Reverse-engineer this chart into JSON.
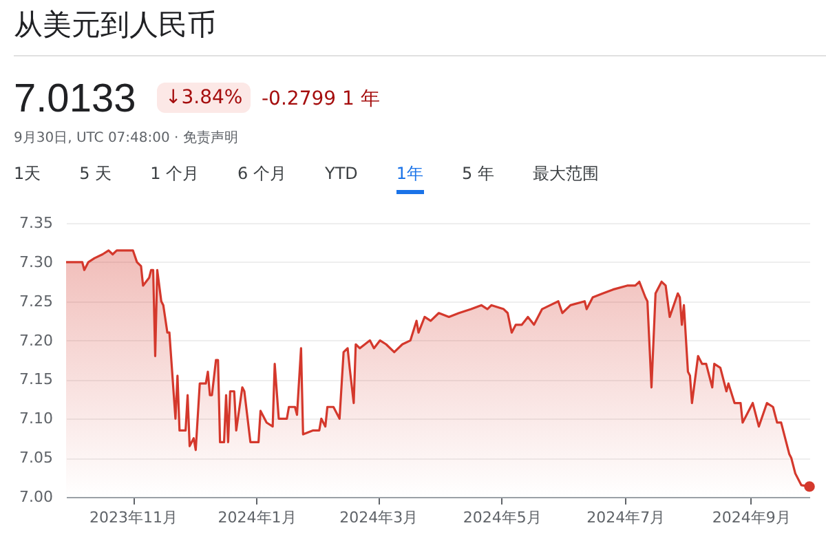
{
  "chart_data": {
    "type": "area",
    "title": "从美元到人民币",
    "annotations": [
      "7.0133",
      "↓3.84%",
      "-0.2799 1 年",
      "9月30日, UTC 07:48:00 · 免责声明",
      "1天",
      "5 天",
      "1 个月",
      "6 个月",
      "YTD",
      "1年",
      "5 年",
      "最大范围"
    ],
    "x": [
      "2023-09-29",
      "2023-10-07",
      "2023-10-08",
      "2023-10-10",
      "2023-10-13",
      "2023-10-17",
      "2023-10-20",
      "2023-10-22",
      "2023-10-24",
      "2023-10-30",
      "2023-11-01",
      "2023-11-03",
      "2023-11-05",
      "2023-11-06",
      "2023-11-09",
      "2023-11-10",
      "2023-11-11",
      "2023-11-12",
      "2023-11-13",
      "2023-11-15",
      "2023-11-16",
      "2023-11-18",
      "2023-11-19",
      "2023-11-22",
      "2023-11-23",
      "2023-11-24",
      "2023-11-27",
      "2023-11-28",
      "2023-11-29",
      "2023-12-01",
      "2023-12-02",
      "2023-12-04",
      "2023-12-07",
      "2023-12-08",
      "2023-12-09",
      "2023-12-10",
      "2023-12-12",
      "2023-12-13",
      "2023-12-14",
      "2023-12-16",
      "2023-12-17",
      "2023-12-18",
      "2023-12-19",
      "2023-12-21",
      "2023-12-22",
      "2023-12-25",
      "2023-12-26",
      "2023-12-29",
      "2023-12-31",
      "2024-01-02",
      "2024-01-03",
      "2024-01-06",
      "2024-01-09",
      "2024-01-10",
      "2024-01-12",
      "2024-01-16",
      "2024-01-17",
      "2024-01-20",
      "2024-01-21",
      "2024-01-23",
      "2024-01-24",
      "2024-01-29",
      "2024-02-01",
      "2024-02-02",
      "2024-02-04",
      "2024-02-05",
      "2024-02-08",
      "2024-02-11",
      "2024-02-13",
      "2024-02-15",
      "2024-02-16",
      "2024-02-18",
      "2024-02-19",
      "2024-02-21",
      "2024-02-26",
      "2024-02-28",
      "2024-03-02",
      "2024-03-05",
      "2024-03-09",
      "2024-03-13",
      "2024-03-17",
      "2024-03-20",
      "2024-03-21",
      "2024-03-24",
      "2024-03-27",
      "2024-03-31",
      "2024-04-05",
      "2024-04-10",
      "2024-04-16",
      "2024-04-21",
      "2024-04-24",
      "2024-04-26",
      "2024-05-02",
      "2024-05-04",
      "2024-05-06",
      "2024-05-08",
      "2024-05-11",
      "2024-05-14",
      "2024-05-17",
      "2024-05-21",
      "2024-05-25",
      "2024-05-29",
      "2024-05-31",
      "2024-06-04",
      "2024-06-11",
      "2024-06-12",
      "2024-06-15",
      "2024-06-20",
      "2024-06-25",
      "2024-07-02",
      "2024-07-06",
      "2024-07-08",
      "2024-07-11",
      "2024-07-12",
      "2024-07-14",
      "2024-07-16",
      "2024-07-19",
      "2024-07-21",
      "2024-07-23",
      "2024-07-27",
      "2024-07-28",
      "2024-07-29",
      "2024-07-30",
      "2024-08-01",
      "2024-08-02",
      "2024-08-03",
      "2024-08-06",
      "2024-08-08",
      "2024-08-10",
      "2024-08-13",
      "2024-08-14",
      "2024-08-17",
      "2024-08-20",
      "2024-08-21",
      "2024-08-24",
      "2024-08-27",
      "2024-08-28",
      "2024-09-02",
      "2024-09-05",
      "2024-09-09",
      "2024-09-12",
      "2024-09-14",
      "2024-09-16",
      "2024-09-20",
      "2024-09-21",
      "2024-09-23",
      "2024-09-26",
      "2024-09-30"
    ],
    "series": [
      {
        "color": "#d4382c",
        "values": [
          7.3,
          7.3,
          7.29,
          7.3,
          7.305,
          7.31,
          7.315,
          7.31,
          7.315,
          7.315,
          7.315,
          7.3,
          7.295,
          7.27,
          7.28,
          7.29,
          7.29,
          7.18,
          7.29,
          7.25,
          7.245,
          7.21,
          7.21,
          7.1,
          7.155,
          7.085,
          7.085,
          7.13,
          7.065,
          7.075,
          7.06,
          7.145,
          7.145,
          7.16,
          7.13,
          7.13,
          7.175,
          7.175,
          7.07,
          7.07,
          7.13,
          7.07,
          7.135,
          7.135,
          7.085,
          7.14,
          7.135,
          7.07,
          7.07,
          7.07,
          7.11,
          7.095,
          7.09,
          7.17,
          7.1,
          7.1,
          7.115,
          7.115,
          7.105,
          7.19,
          7.08,
          7.085,
          7.085,
          7.1,
          7.09,
          7.115,
          7.115,
          7.1,
          7.185,
          7.19,
          7.165,
          7.12,
          7.195,
          7.19,
          7.2,
          7.19,
          7.2,
          7.195,
          7.185,
          7.195,
          7.2,
          7.225,
          7.21,
          7.23,
          7.225,
          7.235,
          7.23,
          7.235,
          7.24,
          7.245,
          7.24,
          7.245,
          7.24,
          7.235,
          7.21,
          7.22,
          7.22,
          7.23,
          7.22,
          7.24,
          7.245,
          7.25,
          7.235,
          7.245,
          7.25,
          7.24,
          7.255,
          7.26,
          7.265,
          7.27,
          7.27,
          7.275,
          7.255,
          7.25,
          7.14,
          7.26,
          7.275,
          7.27,
          7.23,
          7.26,
          7.255,
          7.22,
          7.245,
          7.16,
          7.155,
          7.12,
          7.18,
          7.17,
          7.17,
          7.14,
          7.17,
          7.165,
          7.135,
          7.145,
          7.12,
          7.12,
          7.095,
          7.12,
          7.09,
          7.12,
          7.115,
          7.095,
          7.095,
          7.055,
          7.05,
          7.03,
          7.015,
          7.0133
        ]
      }
    ],
    "xlim": [
      "2023-09-29",
      "2024-09-30"
    ],
    "xticks": [
      {
        "value": "2023-11-01",
        "label": "2023年11月"
      },
      {
        "value": "2024-01-01",
        "label": "2024年1月"
      },
      {
        "value": "2024-03-01",
        "label": "2024年3月"
      },
      {
        "value": "2024-05-01",
        "label": "2024年5月"
      },
      {
        "value": "2024-07-01",
        "label": "2024年7月"
      },
      {
        "value": "2024-09-01",
        "label": "2024年9月"
      }
    ],
    "ylim": [
      7.0,
      7.35
    ],
    "yticks": [
      {
        "value": 7.0,
        "label": "7.00"
      },
      {
        "value": 7.05,
        "label": "7.05"
      },
      {
        "value": 7.1,
        "label": "7.10"
      },
      {
        "value": 7.15,
        "label": "7.15"
      },
      {
        "value": 7.2,
        "label": "7.20"
      },
      {
        "value": 7.25,
        "label": "7.25"
      },
      {
        "value": 7.3,
        "label": "7.30"
      },
      {
        "value": 7.35,
        "label": "7.35"
      }
    ],
    "grid": "y"
  }
}
